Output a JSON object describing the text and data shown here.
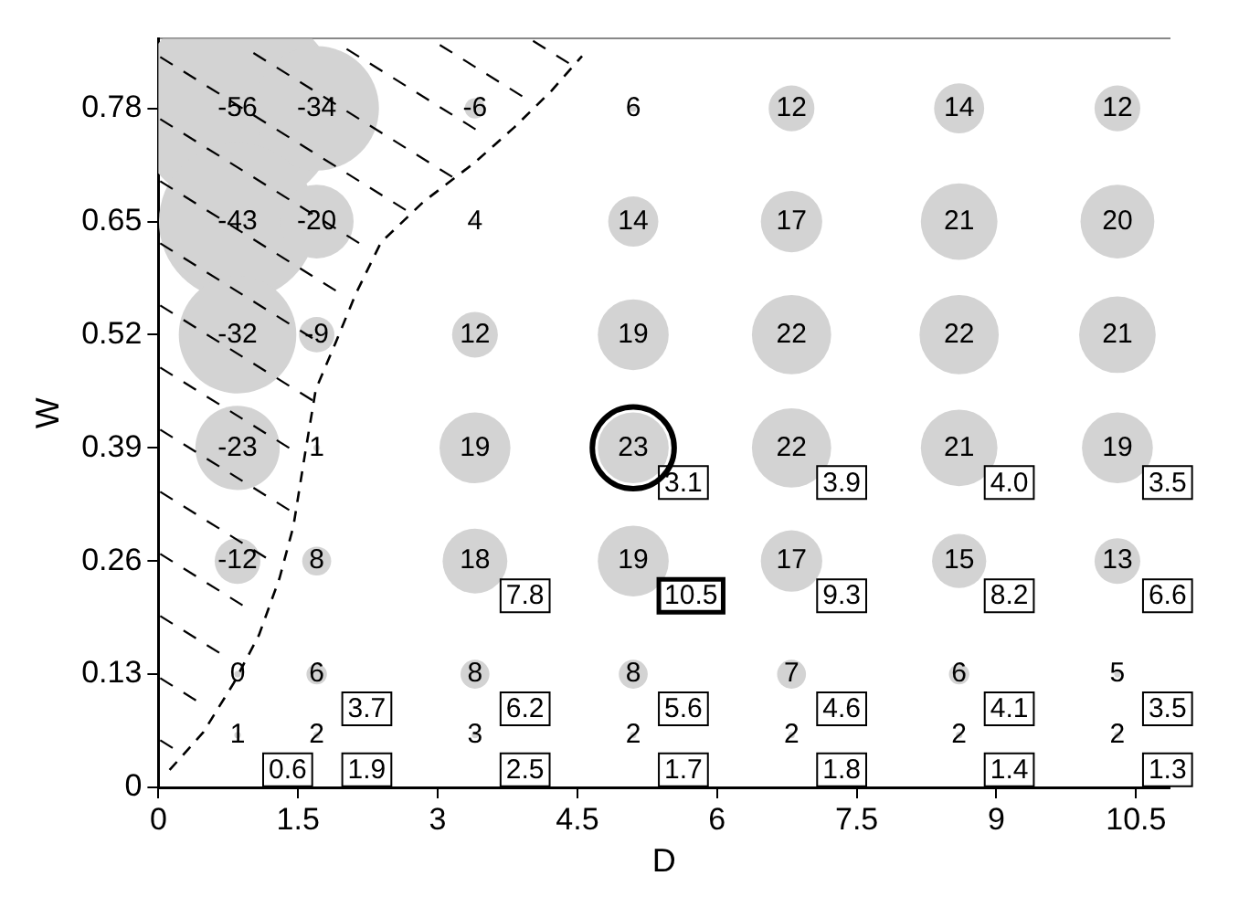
{
  "chart_data": {
    "type": "bubble",
    "xlabel": "D",
    "ylabel": "W",
    "xlim": [
      0,
      10.86
    ],
    "xticks": [
      0,
      1.5,
      3,
      4.5,
      6,
      7.5,
      9,
      10.5
    ],
    "ylim": [
      0,
      0.86
    ],
    "yticks": [
      0,
      0.13,
      0.26,
      0.39,
      0.52,
      0.65,
      0.78
    ],
    "grid": false,
    "legend": false,
    "series": [
      {
        "color": "#d3d3d3",
        "x": [
          0.85,
          1.7,
          3.4,
          5.1,
          6.8,
          8.6,
          10.3,
          0.85,
          1.7,
          3.4,
          5.1,
          6.8,
          8.6,
          10.3,
          0.85,
          1.7,
          3.4,
          5.1,
          6.8,
          8.6,
          10.3,
          0.85,
          1.7,
          3.4,
          5.1,
          6.8,
          8.6,
          10.3,
          0.85,
          1.7,
          3.4,
          5.1,
          6.8,
          8.6,
          10.3,
          0.85,
          1.7,
          3.4,
          5.1,
          6.8,
          8.6,
          10.3,
          0.85,
          1.7,
          3.4,
          5.1,
          6.8,
          8.6,
          10.3
        ],
        "values": [
          0.78,
          0.78,
          0.78,
          0.78,
          0.78,
          0.78,
          0.78,
          0.65,
          0.65,
          0.65,
          0.65,
          0.65,
          0.65,
          0.65,
          0.52,
          0.52,
          0.52,
          0.52,
          0.52,
          0.52,
          0.52,
          0.39,
          0.39,
          0.39,
          0.39,
          0.39,
          0.39,
          0.39,
          0.26,
          0.26,
          0.26,
          0.26,
          0.26,
          0.26,
          0.26,
          0.13,
          0.13,
          0.13,
          0.13,
          0.13,
          0.13,
          0.13,
          0.06,
          0.06,
          0.06,
          0.06,
          0.06,
          0.06,
          0.06
        ],
        "sizes": [
          1,
          0.37,
          0.01,
          0.001,
          0.05,
          0.06,
          0.05,
          0.59,
          0.13,
          0.001,
          0.06,
          0.09,
          0.14,
          0.13,
          0.33,
          0.03,
          0.05,
          0.12,
          0.15,
          0.15,
          0.14,
          0.17,
          0.001,
          0.12,
          0.12,
          0.15,
          0.14,
          0.12,
          0.05,
          0.02,
          0.1,
          0.12,
          0.09,
          0.07,
          0.05,
          0.001,
          0.01,
          0.02,
          0.02,
          0.02,
          0.01,
          0.001,
          0.001,
          0.001,
          0.001,
          0.001,
          0.001,
          0.001,
          0.001
        ]
      },
      {
        "type": "line",
        "color": "#000000",
        "line_style": "dashed",
        "marker": "none",
        "x": [
          0.12,
          0.48,
          0.81,
          1.08,
          1.3,
          1.45,
          1.57,
          1.69,
          1.9,
          2.12,
          2.39,
          2.85,
          3.4,
          3.82,
          4.22,
          4.55
        ],
        "values": [
          0.02,
          0.063,
          0.12,
          0.175,
          0.24,
          0.3,
          0.38,
          0.457,
          0.51,
          0.567,
          0.626,
          0.673,
          0.718,
          0.758,
          0.8,
          0.84
        ]
      }
    ],
    "annotations": [
      {
        "text": "-56",
        "x": 0.85,
        "y": 0.78
      },
      {
        "text": "-34",
        "x": 1.7,
        "y": 0.78
      },
      {
        "text": "-6",
        "x": 3.4,
        "y": 0.78
      },
      {
        "text": "6",
        "x": 5.1,
        "y": 0.78
      },
      {
        "text": "12",
        "x": 6.8,
        "y": 0.78
      },
      {
        "text": "14",
        "x": 8.6,
        "y": 0.78
      },
      {
        "text": "12",
        "x": 10.3,
        "y": 0.78
      },
      {
        "text": "-43",
        "x": 0.85,
        "y": 0.65
      },
      {
        "text": "-20",
        "x": 1.7,
        "y": 0.65
      },
      {
        "text": "4",
        "x": 3.4,
        "y": 0.65
      },
      {
        "text": "14",
        "x": 5.1,
        "y": 0.65
      },
      {
        "text": "17",
        "x": 6.8,
        "y": 0.65
      },
      {
        "text": "21",
        "x": 8.6,
        "y": 0.65
      },
      {
        "text": "20",
        "x": 10.3,
        "y": 0.65
      },
      {
        "text": "-32",
        "x": 0.85,
        "y": 0.52
      },
      {
        "text": "-9",
        "x": 1.7,
        "y": 0.52
      },
      {
        "text": "12",
        "x": 3.4,
        "y": 0.52
      },
      {
        "text": "19",
        "x": 5.1,
        "y": 0.52
      },
      {
        "text": "22",
        "x": 6.8,
        "y": 0.52
      },
      {
        "text": "22",
        "x": 8.6,
        "y": 0.52
      },
      {
        "text": "21",
        "x": 10.3,
        "y": 0.52
      },
      {
        "text": "-23",
        "x": 0.85,
        "y": 0.39
      },
      {
        "text": "1",
        "x": 1.7,
        "y": 0.39
      },
      {
        "text": "19",
        "x": 3.4,
        "y": 0.39
      },
      {
        "text": "23",
        "x": 5.1,
        "y": 0.39
      },
      {
        "text": "22",
        "x": 6.8,
        "y": 0.39
      },
      {
        "text": "21",
        "x": 8.6,
        "y": 0.39
      },
      {
        "text": "19",
        "x": 10.3,
        "y": 0.39
      },
      {
        "text": "-12",
        "x": 0.85,
        "y": 0.26
      },
      {
        "text": "8",
        "x": 1.7,
        "y": 0.26
      },
      {
        "text": "18",
        "x": 3.4,
        "y": 0.26
      },
      {
        "text": "19",
        "x": 5.1,
        "y": 0.26
      },
      {
        "text": "17",
        "x": 6.8,
        "y": 0.26
      },
      {
        "text": "15",
        "x": 8.6,
        "y": 0.26
      },
      {
        "text": "13",
        "x": 10.3,
        "y": 0.26
      },
      {
        "text": "0",
        "x": 0.85,
        "y": 0.13
      },
      {
        "text": "6",
        "x": 1.7,
        "y": 0.13
      },
      {
        "text": "8",
        "x": 3.4,
        "y": 0.13
      },
      {
        "text": "8",
        "x": 5.1,
        "y": 0.13
      },
      {
        "text": "7",
        "x": 6.8,
        "y": 0.13
      },
      {
        "text": "6",
        "x": 8.6,
        "y": 0.13
      },
      {
        "text": "5",
        "x": 10.3,
        "y": 0.13
      },
      {
        "text": "1",
        "x": 0.85,
        "y": 0.06
      },
      {
        "text": "2",
        "x": 1.7,
        "y": 0.06
      },
      {
        "text": "3",
        "x": 3.4,
        "y": 0.06
      },
      {
        "text": "2",
        "x": 5.1,
        "y": 0.06
      },
      {
        "text": "2",
        "x": 6.8,
        "y": 0.06
      },
      {
        "text": "2",
        "x": 8.6,
        "y": 0.06
      },
      {
        "text": "2",
        "x": 10.3,
        "y": 0.06
      },
      {
        "text": "3.1",
        "x": 5.1,
        "y": 0.39
      },
      {
        "text": "3.9",
        "x": 6.8,
        "y": 0.39
      },
      {
        "text": "4.0",
        "x": 8.6,
        "y": 0.39
      },
      {
        "text": "3.5",
        "x": 10.3,
        "y": 0.39
      },
      {
        "text": "7.8",
        "x": 3.4,
        "y": 0.26
      },
      {
        "text": "10.5",
        "x": 5.1,
        "y": 0.26
      },
      {
        "text": "9.3",
        "x": 6.8,
        "y": 0.26
      },
      {
        "text": "8.2",
        "x": 8.6,
        "y": 0.26
      },
      {
        "text": "6.6",
        "x": 10.3,
        "y": 0.26
      },
      {
        "text": "3.7",
        "x": 1.7,
        "y": 0.13
      },
      {
        "text": "6.2",
        "x": 3.4,
        "y": 0.13
      },
      {
        "text": "5.6",
        "x": 5.1,
        "y": 0.13
      },
      {
        "text": "4.6",
        "x": 6.8,
        "y": 0.13
      },
      {
        "text": "4.1",
        "x": 8.6,
        "y": 0.13
      },
      {
        "text": "3.5",
        "x": 10.3,
        "y": 0.13
      },
      {
        "text": "0.6",
        "x": 0.85,
        "y": 0.06
      },
      {
        "text": "1.9",
        "x": 1.7,
        "y": 0.06
      },
      {
        "text": "2.5",
        "x": 3.4,
        "y": 0.06
      },
      {
        "text": "1.7",
        "x": 5.1,
        "y": 0.06
      },
      {
        "text": "1.8",
        "x": 6.8,
        "y": 0.06
      },
      {
        "text": "1.4",
        "x": 8.6,
        "y": 0.06
      },
      {
        "text": "1.3",
        "x": 10.3,
        "y": 0.06
      }
    ]
  }
}
